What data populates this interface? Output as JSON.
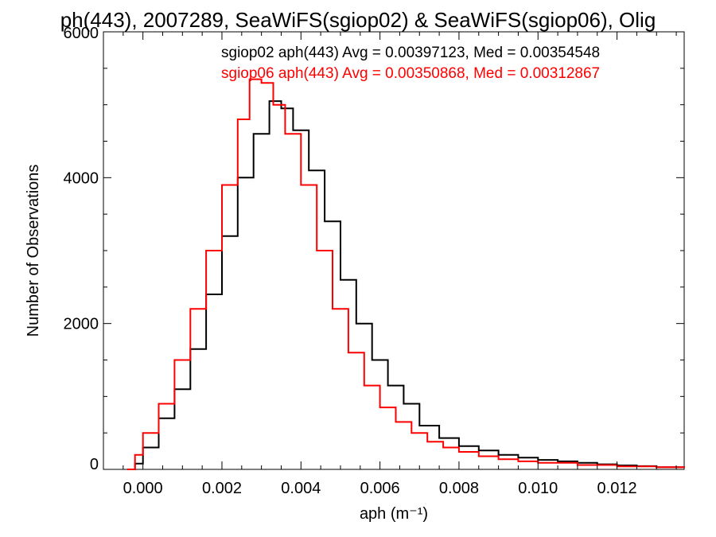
{
  "chart_data": {
    "type": "line",
    "title": "ph(443), 2007289, SeaWiFS(sgiop02) & SeaWiFS(sgiop06), Olig",
    "xlabel": "aph (m⁻¹)",
    "ylabel": "Number of Observations",
    "xlim": [
      -0.001,
      0.0137
    ],
    "ylim": [
      0,
      6000
    ],
    "x_ticks": [
      0.0,
      0.002,
      0.004,
      0.006,
      0.008,
      0.01,
      0.012
    ],
    "x_tick_labels": [
      "0.000",
      "0.002",
      "0.004",
      "0.006",
      "0.008",
      "0.010",
      "0.012"
    ],
    "y_ticks": [
      0,
      2000,
      4000,
      6000
    ],
    "y_tick_labels": [
      "0",
      "2000",
      "4000",
      "6000"
    ],
    "grid": false,
    "legend_placement": "top-right",
    "series": [
      {
        "name": "sgiop02 aph(443) Avg = 0.00397123, Med = 0.00354548",
        "color": "#000000",
        "points": [
          [
            -0.0003,
            0
          ],
          [
            -0.0002,
            80
          ],
          [
            0.0,
            300
          ],
          [
            0.0004,
            700
          ],
          [
            0.0008,
            1100
          ],
          [
            0.0012,
            1650
          ],
          [
            0.0016,
            2400
          ],
          [
            0.002,
            3200
          ],
          [
            0.0024,
            4000
          ],
          [
            0.0028,
            4600
          ],
          [
            0.0032,
            5050
          ],
          [
            0.0035,
            4950
          ],
          [
            0.0038,
            4650
          ],
          [
            0.0042,
            4100
          ],
          [
            0.0046,
            3400
          ],
          [
            0.005,
            2600
          ],
          [
            0.0054,
            2000
          ],
          [
            0.0058,
            1500
          ],
          [
            0.0062,
            1150
          ],
          [
            0.0066,
            900
          ],
          [
            0.007,
            600
          ],
          [
            0.0075,
            430
          ],
          [
            0.008,
            320
          ],
          [
            0.0085,
            260
          ],
          [
            0.009,
            200
          ],
          [
            0.0095,
            160
          ],
          [
            0.01,
            130
          ],
          [
            0.0105,
            110
          ],
          [
            0.011,
            90
          ],
          [
            0.0115,
            70
          ],
          [
            0.012,
            55
          ],
          [
            0.0125,
            45
          ],
          [
            0.013,
            30
          ],
          [
            0.0137,
            25
          ]
        ]
      },
      {
        "name": "sgiop06 aph(443) Avg = 0.00350868, Med = 0.00312867",
        "color": "#ff0000",
        "points": [
          [
            -0.0004,
            0
          ],
          [
            -0.0002,
            200
          ],
          [
            0.0,
            500
          ],
          [
            0.0004,
            900
          ],
          [
            0.0008,
            1500
          ],
          [
            0.0012,
            2200
          ],
          [
            0.0016,
            3000
          ],
          [
            0.002,
            3900
          ],
          [
            0.0024,
            4800
          ],
          [
            0.0027,
            5350
          ],
          [
            0.003,
            5300
          ],
          [
            0.0033,
            5000
          ],
          [
            0.0036,
            4600
          ],
          [
            0.004,
            3900
          ],
          [
            0.0044,
            3000
          ],
          [
            0.0048,
            2200
          ],
          [
            0.0052,
            1600
          ],
          [
            0.0056,
            1150
          ],
          [
            0.006,
            850
          ],
          [
            0.0064,
            650
          ],
          [
            0.0068,
            500
          ],
          [
            0.0072,
            380
          ],
          [
            0.0076,
            300
          ],
          [
            0.008,
            240
          ],
          [
            0.0085,
            180
          ],
          [
            0.009,
            140
          ],
          [
            0.0095,
            110
          ],
          [
            0.01,
            90
          ],
          [
            0.011,
            60
          ],
          [
            0.012,
            40
          ],
          [
            0.013,
            30
          ],
          [
            0.0137,
            20
          ]
        ]
      }
    ]
  }
}
